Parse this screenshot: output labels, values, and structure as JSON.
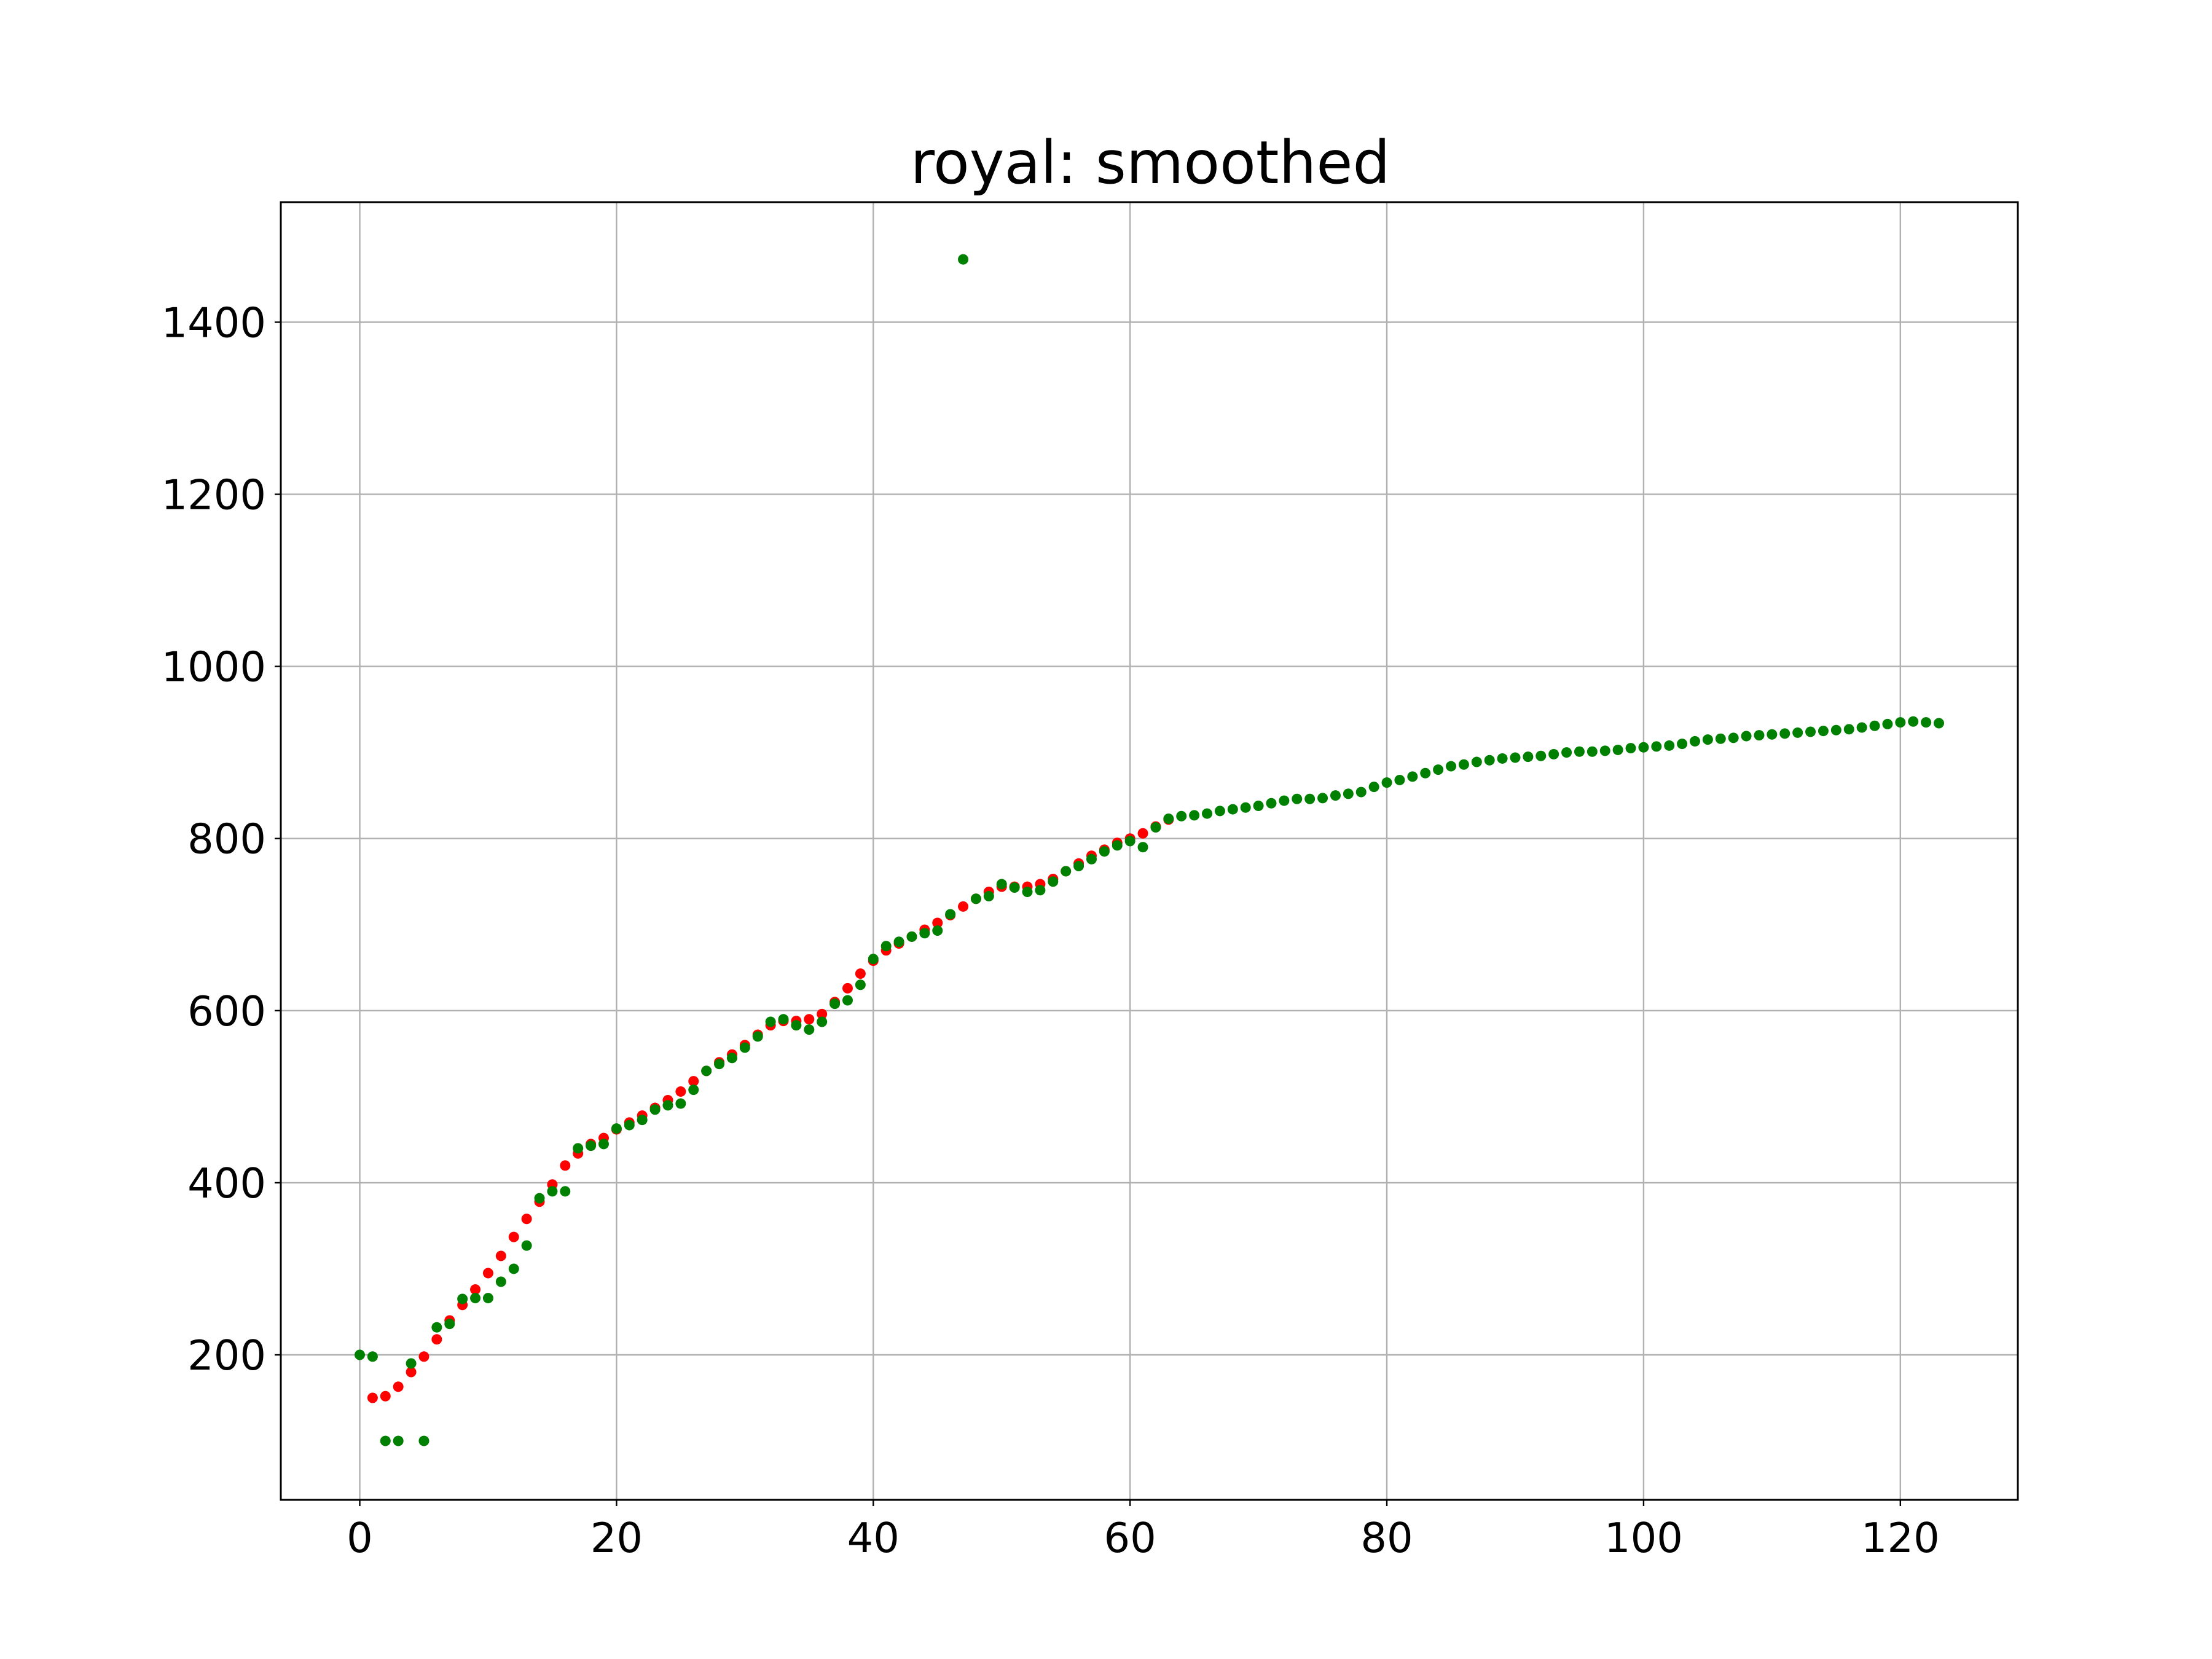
{
  "chart_data": {
    "type": "scatter",
    "title": "royal: smoothed",
    "xlabel": "",
    "ylabel": "",
    "xlim": [
      -6.15,
      129.15
    ],
    "ylim": [
      31.5,
      1539.5
    ],
    "xticks": [
      0,
      20,
      40,
      60,
      80,
      100,
      120
    ],
    "yticks": [
      200,
      400,
      600,
      800,
      1000,
      1200,
      1400
    ],
    "grid": true,
    "legend": "none",
    "series": [
      {
        "color": "#ff0000",
        "points": [
          [
            1,
            150
          ],
          [
            2,
            152
          ],
          [
            3,
            163
          ],
          [
            4,
            180
          ],
          [
            5,
            198
          ],
          [
            6,
            218
          ],
          [
            7,
            240
          ],
          [
            8,
            258
          ],
          [
            9,
            276
          ],
          [
            10,
            295
          ],
          [
            11,
            315
          ],
          [
            12,
            337
          ],
          [
            13,
            358
          ],
          [
            14,
            378
          ],
          [
            15,
            398
          ],
          [
            16,
            420
          ],
          [
            17,
            434
          ],
          [
            18,
            445
          ],
          [
            19,
            452
          ],
          [
            20,
            462
          ],
          [
            21,
            470
          ],
          [
            22,
            478
          ],
          [
            23,
            487
          ],
          [
            24,
            496
          ],
          [
            25,
            506
          ],
          [
            26,
            518
          ],
          [
            27,
            530
          ],
          [
            28,
            540
          ],
          [
            29,
            549
          ],
          [
            30,
            560
          ],
          [
            31,
            572
          ],
          [
            32,
            583
          ],
          [
            33,
            588
          ],
          [
            34,
            588
          ],
          [
            35,
            590
          ],
          [
            36,
            596
          ],
          [
            37,
            610
          ],
          [
            38,
            626
          ],
          [
            39,
            643
          ],
          [
            40,
            658
          ],
          [
            41,
            670
          ],
          [
            42,
            678
          ],
          [
            43,
            686
          ],
          [
            44,
            694
          ],
          [
            45,
            702
          ],
          [
            46,
            711
          ],
          [
            47,
            721
          ],
          [
            48,
            730
          ],
          [
            49,
            738
          ],
          [
            50,
            744
          ],
          [
            51,
            744
          ],
          [
            52,
            744
          ],
          [
            53,
            747
          ],
          [
            54,
            753
          ],
          [
            55,
            762
          ],
          [
            56,
            771
          ],
          [
            57,
            780
          ],
          [
            58,
            787
          ],
          [
            59,
            795
          ],
          [
            60,
            800
          ],
          [
            61,
            806
          ],
          [
            62,
            814
          ],
          [
            63,
            822
          ]
        ]
      },
      {
        "color": "#008000",
        "points": [
          [
            0,
            200
          ],
          [
            1,
            198
          ],
          [
            2,
            100
          ],
          [
            3,
            100
          ],
          [
            4,
            190
          ],
          [
            5,
            100
          ],
          [
            6,
            232
          ],
          [
            7,
            236
          ],
          [
            8,
            265
          ],
          [
            9,
            266
          ],
          [
            10,
            266
          ],
          [
            11,
            285
          ],
          [
            12,
            300
          ],
          [
            13,
            327
          ],
          [
            14,
            382
          ],
          [
            15,
            390
          ],
          [
            16,
            390
          ],
          [
            17,
            440
          ],
          [
            18,
            443
          ],
          [
            19,
            445
          ],
          [
            20,
            463
          ],
          [
            21,
            467
          ],
          [
            22,
            473
          ],
          [
            23,
            485
          ],
          [
            24,
            490
          ],
          [
            25,
            492
          ],
          [
            26,
            508
          ],
          [
            27,
            530
          ],
          [
            28,
            538
          ],
          [
            29,
            545
          ],
          [
            30,
            557
          ],
          [
            31,
            570
          ],
          [
            32,
            587
          ],
          [
            33,
            590
          ],
          [
            34,
            583
          ],
          [
            35,
            578
          ],
          [
            36,
            587
          ],
          [
            37,
            608
          ],
          [
            38,
            612
          ],
          [
            39,
            630
          ],
          [
            40,
            660
          ],
          [
            41,
            675
          ],
          [
            42,
            680
          ],
          [
            43,
            686
          ],
          [
            44,
            690
          ],
          [
            45,
            693
          ],
          [
            46,
            712
          ],
          [
            47,
            1473
          ],
          [
            48,
            730
          ],
          [
            49,
            733
          ],
          [
            50,
            747
          ],
          [
            51,
            743
          ],
          [
            52,
            738
          ],
          [
            53,
            740
          ],
          [
            54,
            750
          ],
          [
            55,
            762
          ],
          [
            56,
            768
          ],
          [
            57,
            776
          ],
          [
            58,
            785
          ],
          [
            59,
            792
          ],
          [
            60,
            797
          ],
          [
            61,
            790
          ],
          [
            62,
            813
          ],
          [
            63,
            823
          ],
          [
            64,
            826
          ],
          [
            65,
            827
          ],
          [
            66,
            829
          ],
          [
            67,
            832
          ],
          [
            68,
            834
          ],
          [
            69,
            836
          ],
          [
            70,
            838
          ],
          [
            71,
            841
          ],
          [
            72,
            844
          ],
          [
            73,
            846
          ],
          [
            74,
            846
          ],
          [
            75,
            847
          ],
          [
            76,
            850
          ],
          [
            77,
            852
          ],
          [
            78,
            854
          ],
          [
            79,
            860
          ],
          [
            80,
            865
          ],
          [
            81,
            868
          ],
          [
            82,
            872
          ],
          [
            83,
            876
          ],
          [
            84,
            880
          ],
          [
            85,
            884
          ],
          [
            86,
            886
          ],
          [
            87,
            889
          ],
          [
            88,
            891
          ],
          [
            89,
            893
          ],
          [
            90,
            894
          ],
          [
            91,
            895
          ],
          [
            92,
            896
          ],
          [
            93,
            898
          ],
          [
            94,
            900
          ],
          [
            95,
            901
          ],
          [
            96,
            901
          ],
          [
            97,
            902
          ],
          [
            98,
            903
          ],
          [
            99,
            905
          ],
          [
            100,
            906
          ],
          [
            101,
            907
          ],
          [
            102,
            908
          ],
          [
            103,
            910
          ],
          [
            104,
            913
          ],
          [
            105,
            915
          ],
          [
            106,
            916
          ],
          [
            107,
            917
          ],
          [
            108,
            919
          ],
          [
            109,
            920
          ],
          [
            110,
            921
          ],
          [
            111,
            922
          ],
          [
            112,
            923
          ],
          [
            113,
            924
          ],
          [
            114,
            925
          ],
          [
            115,
            926
          ],
          [
            116,
            927
          ],
          [
            117,
            929
          ],
          [
            118,
            931
          ],
          [
            119,
            933
          ],
          [
            120,
            935
          ],
          [
            121,
            936
          ],
          [
            122,
            935
          ],
          [
            123,
            934
          ]
        ]
      }
    ]
  }
}
